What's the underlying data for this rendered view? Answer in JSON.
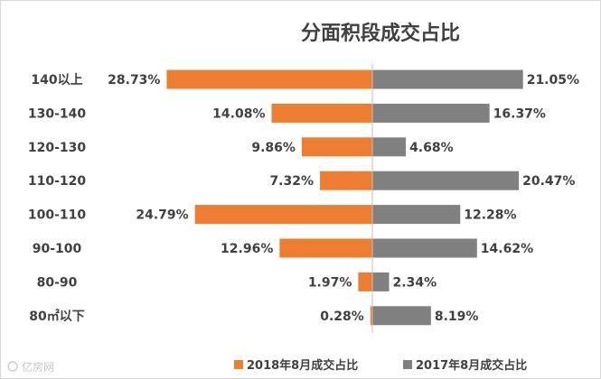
{
  "chart_data": {
    "type": "bar",
    "orientation": "horizontal-butterfly",
    "title": "分面积段成交占比",
    "categories": [
      "140以上",
      "130-140",
      "120-130",
      "110-120",
      "100-110",
      "90-100",
      "80-90",
      "80㎡以下"
    ],
    "series": [
      {
        "name": "2018年8月成交占比",
        "color": "#ED7D31",
        "side": "left",
        "values": [
          28.73,
          14.08,
          9.86,
          7.32,
          24.79,
          12.96,
          1.97,
          0.28
        ],
        "labels": [
          "28.73%",
          "14.08%",
          "9.86%",
          "7.32%",
          "24.79%",
          "12.96%",
          "1.97%",
          "0.28%"
        ]
      },
      {
        "name": "2017年8月成交占比",
        "color": "#808080",
        "side": "right",
        "values": [
          21.05,
          16.37,
          4.68,
          20.47,
          12.28,
          14.62,
          2.34,
          8.19
        ],
        "labels": [
          "21.05%",
          "16.37%",
          "4.68%",
          "20.47%",
          "12.28%",
          "14.62%",
          "2.34%",
          "8.19%"
        ]
      }
    ],
    "xlim": [
      0,
      30
    ],
    "legend_position": "bottom",
    "grid": false
  },
  "watermark": "亿房网",
  "colors": {
    "axis": "#bfbfbf",
    "text": "#404040"
  }
}
